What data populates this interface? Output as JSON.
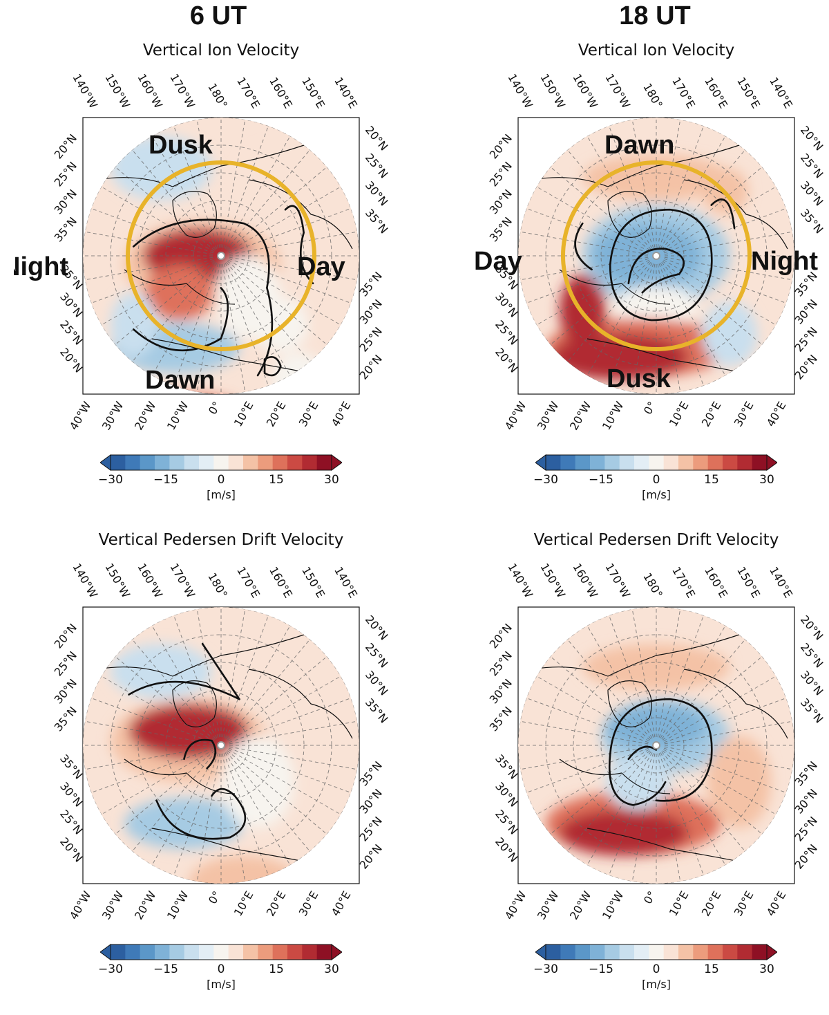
{
  "columns": [
    {
      "label": "6 UT"
    },
    {
      "label": "18 UT"
    }
  ],
  "panels": [
    {
      "id": "p1",
      "title": "Vertical Ion Velocity",
      "regions": {
        "left": "Night",
        "right": "Day",
        "top": "Dusk",
        "bottom": "Dawn"
      }
    },
    {
      "id": "p2",
      "title": "Vertical Ion Velocity",
      "regions": {
        "left": "Day",
        "right": "Night",
        "top": "Dawn",
        "bottom": "Dusk"
      }
    },
    {
      "id": "p3",
      "title": "Vertical Pedersen Drift Velocity"
    },
    {
      "id": "p4",
      "title": "Vertical Pedersen Drift Velocity"
    }
  ],
  "map_labels": {
    "top_lon": [
      "140°W",
      "150°W",
      "160°W",
      "170°W",
      "180°",
      "170°E",
      "160°E",
      "150°E",
      "140°E"
    ],
    "bottom_lon": [
      "40°W",
      "30°W",
      "20°W",
      "10°W",
      "0°",
      "10°E",
      "20°E",
      "30°E",
      "40°E"
    ],
    "lat_upper": [
      "20°N",
      "25°N",
      "30°N",
      "35°N"
    ],
    "lat_lower": [
      "35°N",
      "30°N",
      "25°N",
      "20°N"
    ]
  },
  "colorbar": {
    "ticks": [
      "−30",
      "−15",
      "0",
      "15",
      "30"
    ],
    "unit": "[m/s]",
    "colors": [
      "#2c5fa0",
      "#3f7ab8",
      "#5b97c8",
      "#7fb2d7",
      "#a6cbe3",
      "#c9dfee",
      "#e3eef5",
      "#f7f4ef",
      "#f9e3d6",
      "#f4c2a6",
      "#ec9c7d",
      "#de715b",
      "#cb4a43",
      "#b12b32",
      "#8e1024"
    ]
  },
  "ring_color": "#e8b32a"
}
